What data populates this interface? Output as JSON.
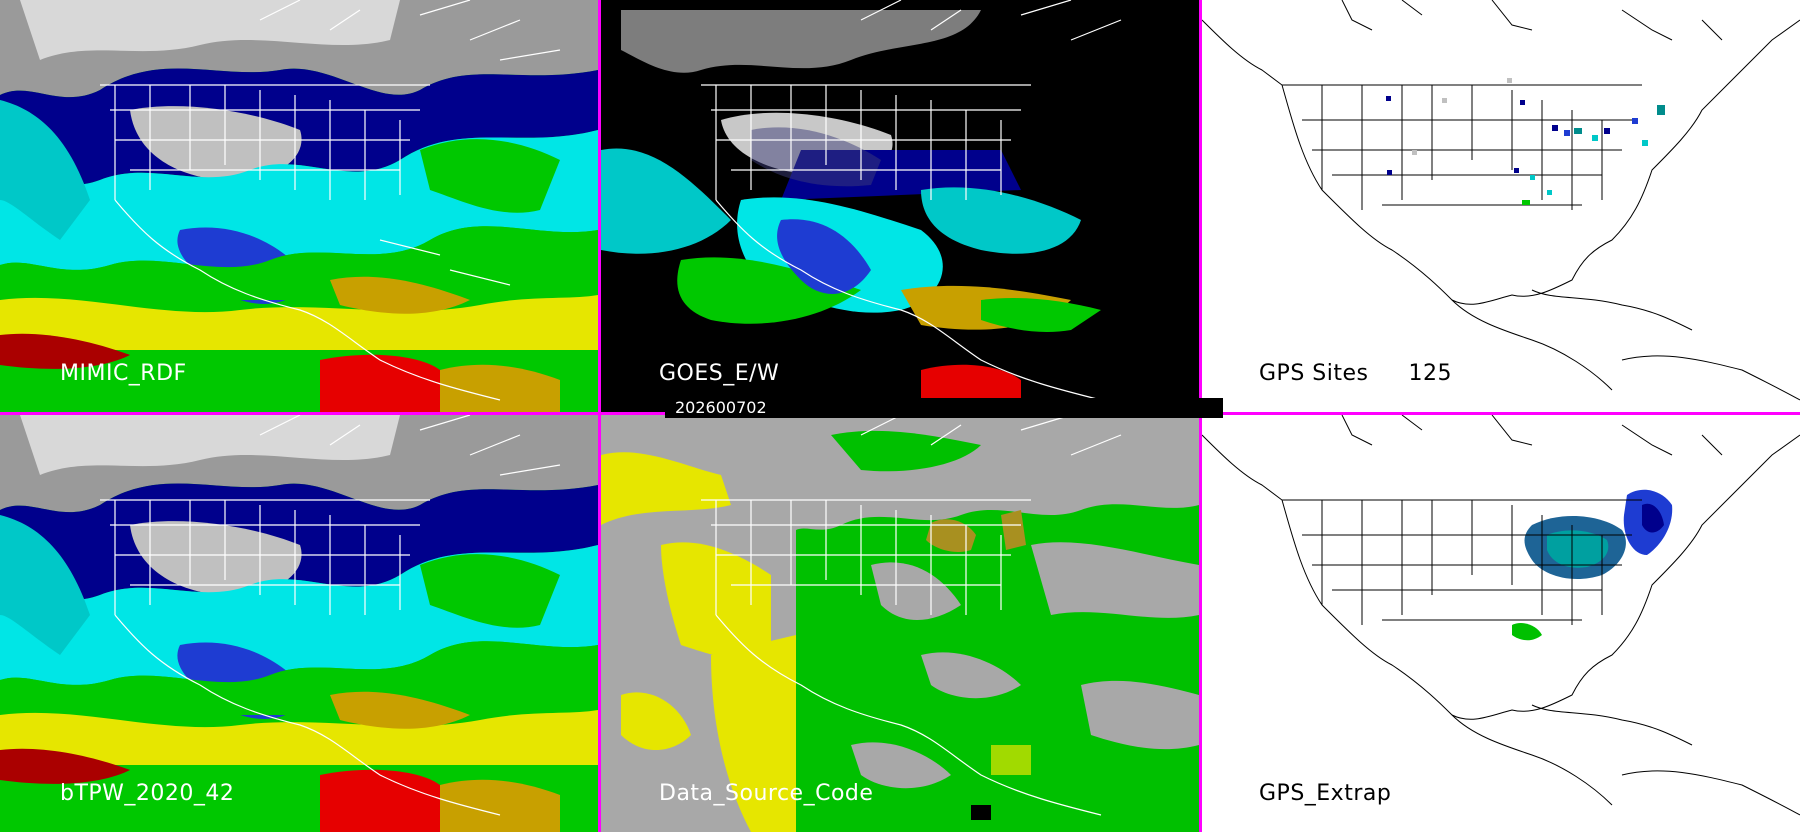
{
  "panels": {
    "mimic_rdf": {
      "label": "MIMIC_RDF"
    },
    "goes_ew": {
      "label": "GOES_E/W"
    },
    "gps_sites": {
      "label": "GPS Sites",
      "count": "125"
    },
    "btpw": {
      "label": "bTPW_2020_42"
    },
    "data_source_code": {
      "label": "Data_Source_Code"
    },
    "gps_extrap": {
      "label": "GPS_Extrap"
    }
  },
  "timestamp": "202600702",
  "colors": {
    "divider": "#ff00ff",
    "tpw_scale": [
      "#7d7d7d",
      "#c8c8c8",
      "#00008c",
      "#1e3cd2",
      "#00e6e6",
      "#00c800",
      "#e6e600",
      "#c8a000",
      "#aa0000",
      "#e60000"
    ],
    "source_gray": "#a8a8a8",
    "source_yellow": "#e6e600",
    "source_green": "#00c000",
    "source_olive": "#a89020"
  }
}
